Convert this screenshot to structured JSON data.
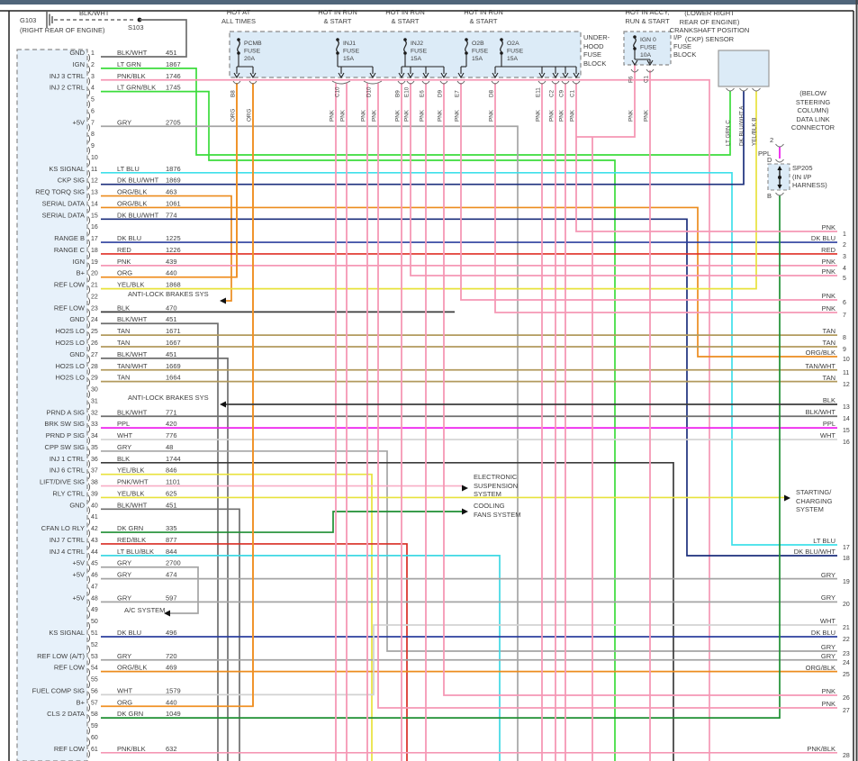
{
  "palette": {
    "PNK": "#f598b5",
    "PNK/BLK": "#f598b5",
    "PNK/WHT": "#f8aec6",
    "ORG": "#f09125",
    "ORG/BLK": "#ec8c1e",
    "RED": "#e02f26",
    "RED/BLK": "#d92d24",
    "DK BLU": "#2b3f9e",
    "DK BLU/WHT": "#1c2f7c",
    "LT BLU": "#3fe0ea",
    "LT BLU/BLK": "#3fd8e4",
    "LT GRN": "#3bdc3b",
    "LT GRN/BLK": "#3bdc3b",
    "DK GRN": "#1f8f33",
    "YEL/BLK": "#e8e23c",
    "TAN": "#b29a5d",
    "TAN/WHT": "#b29a5d",
    "BLK": "#3c3c3c",
    "BLK/WHT": "#6e6e6e",
    "GRY": "#a5a5a5",
    "WHT": "#d2d2d2",
    "PPL": "#ee22ee"
  },
  "ground": {
    "id": "G103",
    "location": "(RIGHT REAR OF ENGINE)",
    "wire": "BLK/WHT",
    "splice": "S103"
  },
  "headers": {
    "hot_all": "HOT AT\nALL TIMES",
    "hot_run": "HOT IN RUN\n& START",
    "hot_accy": "HOT IN ACCY,\nRUN & START"
  },
  "fuse_strip": {
    "block_label": "UNDER-\nHOOD\nFUSE\nBLOCK",
    "fuses": [
      {
        "name": "PCMB",
        "line2": "FUSE",
        "amps": "20A"
      },
      {
        "name": "INJ1",
        "line2": "FUSE",
        "amps": "15A"
      },
      {
        "name": "INJ2",
        "line2": "FUSE",
        "amps": "15A"
      },
      {
        "name": "O2B",
        "line2": "FUSE",
        "amps": "15A"
      },
      {
        "name": "O2A",
        "line2": "FUSE",
        "amps": "15A"
      }
    ],
    "exit_pins": [
      "B8",
      "C10",
      "D10",
      "B9",
      "E10",
      "E6",
      "D9",
      "E7",
      "D8",
      "E11",
      "C2",
      "C9",
      "C1"
    ]
  },
  "ip_fuse": {
    "block_label": "I/P\nFUSE\nBLOCK",
    "fuse": {
      "name": "IGN 0",
      "line2": "FUSE",
      "amps": "10A"
    },
    "exit_pins": [
      "F6",
      "C1"
    ],
    "wire": "PNK"
  },
  "ckp": {
    "title": "(LOWER RIGHT\nREAR OF ENGINE)\nCRANKSHAFT POSITION\n(CKP) SENSOR",
    "pins": [
      {
        "id": "C",
        "wire": "LT GRN"
      },
      {
        "id": "A",
        "wire": "DK BLU/WHT"
      },
      {
        "id": "B",
        "wire": "YEL/BLK"
      }
    ]
  },
  "dlc": {
    "title": "(BELOW\nSTEERING\nCOLUMN)\nDATA LINK\nCONNECTOR",
    "pin": "2",
    "wire": "PPL",
    "top_pin": "D",
    "bottom_pin": "B",
    "splice_label": "SP205\n(IN I/P\nHARNESS)"
  },
  "systems": {
    "abs": "ANTI-LOCK BRAKES SYS",
    "ac": "A/C SYSTEM",
    "ess": "ELECTRONIC\nSUSPENSION\nSYSTEM",
    "cooling": "COOLING\nFANS SYSTEM",
    "starting": "STARTING/\nCHARGING\nSYSTEM"
  },
  "pcm_connector": {
    "rows": [
      {
        "pin": "1",
        "label": "GND",
        "wire": "BLK/WHT",
        "circuit": "451"
      },
      {
        "pin": "2",
        "label": "IGN",
        "wire": "LT GRN",
        "circuit": "1867"
      },
      {
        "pin": "3",
        "label": "INJ 3 CTRL",
        "wire": "PNK/BLK",
        "circuit": "1746"
      },
      {
        "pin": "4",
        "label": "INJ 2 CTRL",
        "wire": "LT GRN/BLK",
        "circuit": "1745"
      },
      {
        "pin": "5",
        "label": "",
        "wire": "",
        "circuit": ""
      },
      {
        "pin": "6",
        "label": "",
        "wire": "",
        "circuit": ""
      },
      {
        "pin": "7",
        "label": "+5V",
        "wire": "GRY",
        "circuit": "2705"
      },
      {
        "pin": "8",
        "label": "",
        "wire": "",
        "circuit": ""
      },
      {
        "pin": "9",
        "label": "",
        "wire": "",
        "circuit": ""
      },
      {
        "pin": "10",
        "label": "",
        "wire": "",
        "circuit": ""
      },
      {
        "pin": "11",
        "label": "KS SIGNAL",
        "wire": "LT BLU",
        "circuit": "1876"
      },
      {
        "pin": "12",
        "label": "CKP SIG",
        "wire": "DK BLU/WHT",
        "circuit": "1869"
      },
      {
        "pin": "13",
        "label": "REQ TORQ SIG",
        "wire": "ORG/BLK",
        "circuit": "463"
      },
      {
        "pin": "14",
        "label": "SERIAL DATA",
        "wire": "ORG/BLK",
        "circuit": "1061"
      },
      {
        "pin": "15",
        "label": "SERIAL DATA",
        "wire": "DK BLU/WHT",
        "circuit": "774"
      },
      {
        "pin": "16",
        "label": "",
        "wire": "",
        "circuit": ""
      },
      {
        "pin": "17",
        "label": "RANGE B",
        "wire": "DK BLU",
        "circuit": "1225"
      },
      {
        "pin": "18",
        "label": "RANGE C",
        "wire": "RED",
        "circuit": "1226"
      },
      {
        "pin": "19",
        "label": "IGN",
        "wire": "PNK",
        "circuit": "439"
      },
      {
        "pin": "20",
        "label": "B+",
        "wire": "ORG",
        "circuit": "440"
      },
      {
        "pin": "21",
        "label": "REF LOW",
        "wire": "YEL/BLK",
        "circuit": "1868"
      },
      {
        "pin": "22",
        "label": "",
        "wire": "",
        "circuit": ""
      },
      {
        "pin": "23",
        "label": "REF LOW",
        "wire": "BLK",
        "circuit": "470"
      },
      {
        "pin": "24",
        "label": "GND",
        "wire": "BLK/WHT",
        "circuit": "451"
      },
      {
        "pin": "25",
        "label": "HO2S LO",
        "wire": "TAN",
        "circuit": "1671"
      },
      {
        "pin": "26",
        "label": "HO2S LO",
        "wire": "TAN",
        "circuit": "1667"
      },
      {
        "pin": "27",
        "label": "GND",
        "wire": "BLK/WHT",
        "circuit": "451"
      },
      {
        "pin": "28",
        "label": "HO2S LO",
        "wire": "TAN/WHT",
        "circuit": "1669"
      },
      {
        "pin": "29",
        "label": "HO2S LO",
        "wire": "TAN",
        "circuit": "1664"
      },
      {
        "pin": "30",
        "label": "",
        "wire": "",
        "circuit": ""
      },
      {
        "pin": "31",
        "label": "",
        "wire": "",
        "circuit": ""
      },
      {
        "pin": "32",
        "label": "PRND A SIG",
        "wire": "BLK/WHT",
        "circuit": "771"
      },
      {
        "pin": "33",
        "label": "BRK SW SIG",
        "wire": "PPL",
        "circuit": "420"
      },
      {
        "pin": "34",
        "label": "PRND P SIG",
        "wire": "WHT",
        "circuit": "776"
      },
      {
        "pin": "35",
        "label": "CPP SW SIG",
        "wire": "GRY",
        "circuit": "48"
      },
      {
        "pin": "36",
        "label": "INJ 1 CTRL",
        "wire": "BLK",
        "circuit": "1744"
      },
      {
        "pin": "37",
        "label": "INJ 6 CTRL",
        "wire": "YEL/BLK",
        "circuit": "846"
      },
      {
        "pin": "38",
        "label": "LIFT/DIVE SIG",
        "wire": "PNK/WHT",
        "circuit": "1101"
      },
      {
        "pin": "39",
        "label": "RLY CTRL",
        "wire": "YEL/BLK",
        "circuit": "625"
      },
      {
        "pin": "40",
        "label": "GND",
        "wire": "BLK/WHT",
        "circuit": "451"
      },
      {
        "pin": "41",
        "label": "",
        "wire": "",
        "circuit": ""
      },
      {
        "pin": "42",
        "label": "CFAN LO RLY",
        "wire": "DK GRN",
        "circuit": "335"
      },
      {
        "pin": "43",
        "label": "INJ 7 CTRL",
        "wire": "RED/BLK",
        "circuit": "877"
      },
      {
        "pin": "44",
        "label": "INJ 4 CTRL",
        "wire": "LT BLU/BLK",
        "circuit": "844"
      },
      {
        "pin": "45",
        "label": "+5V",
        "wire": "GRY",
        "circuit": "2700"
      },
      {
        "pin": "46",
        "label": "+5V",
        "wire": "GRY",
        "circuit": "474"
      },
      {
        "pin": "47",
        "label": "",
        "wire": "",
        "circuit": ""
      },
      {
        "pin": "48",
        "label": "+5V",
        "wire": "GRY",
        "circuit": "597"
      },
      {
        "pin": "49",
        "label": "",
        "wire": "",
        "circuit": ""
      },
      {
        "pin": "50",
        "label": "",
        "wire": "",
        "circuit": ""
      },
      {
        "pin": "51",
        "label": "KS SIGNAL",
        "wire": "DK BLU",
        "circuit": "496"
      },
      {
        "pin": "52",
        "label": "",
        "wire": "",
        "circuit": ""
      },
      {
        "pin": "53",
        "label": "REF LOW (A/T)",
        "wire": "GRY",
        "circuit": "720"
      },
      {
        "pin": "54",
        "label": "REF LOW",
        "wire": "ORG/BLK",
        "circuit": "469"
      },
      {
        "pin": "55",
        "label": "",
        "wire": "",
        "circuit": ""
      },
      {
        "pin": "56",
        "label": "FUEL COMP SIG",
        "wire": "WHT",
        "circuit": "1579"
      },
      {
        "pin": "57",
        "label": "B+",
        "wire": "ORG",
        "circuit": "440"
      },
      {
        "pin": "58",
        "label": "CLS 2 DATA",
        "wire": "DK GRN",
        "circuit": "1049"
      },
      {
        "pin": "59",
        "label": "",
        "wire": "",
        "circuit": ""
      },
      {
        "pin": "60",
        "label": "",
        "wire": "",
        "circuit": ""
      },
      {
        "pin": "61",
        "label": "REF LOW",
        "wire": "PNK/BLK",
        "circuit": "632"
      }
    ]
  },
  "right_pins": [
    {
      "num": "1",
      "wire": "PNK"
    },
    {
      "num": "2",
      "wire": "DK BLU"
    },
    {
      "num": "3",
      "wire": "RED"
    },
    {
      "num": "4",
      "wire": "PNK"
    },
    {
      "num": "5",
      "wire": "PNK"
    },
    {
      "num": "6",
      "wire": "PNK"
    },
    {
      "num": "7",
      "wire": "PNK"
    },
    {
      "num": "8",
      "wire": "TAN"
    },
    {
      "num": "9",
      "wire": "TAN"
    },
    {
      "num": "10",
      "wire": "ORG/BLK"
    },
    {
      "num": "11",
      "wire": "TAN/WHT"
    },
    {
      "num": "12",
      "wire": "TAN"
    },
    {
      "num": "13",
      "wire": "BLK"
    },
    {
      "num": "14",
      "wire": "BLK/WHT"
    },
    {
      "num": "15",
      "wire": "PPL"
    },
    {
      "num": "16",
      "wire": "WHT"
    },
    {
      "num": "17",
      "wire": "LT BLU"
    },
    {
      "num": "18",
      "wire": "DK BLU/WHT"
    },
    {
      "num": "19",
      "wire": "GRY"
    },
    {
      "num": "20",
      "wire": "GRY"
    },
    {
      "num": "21",
      "wire": "WHT"
    },
    {
      "num": "22",
      "wire": "DK BLU"
    },
    {
      "num": "23",
      "wire": "GRY"
    },
    {
      "num": "24",
      "wire": "GRY"
    },
    {
      "num": "25",
      "wire": "ORG/BLK"
    },
    {
      "num": "26",
      "wire": "PNK"
    },
    {
      "num": "27",
      "wire": "PNK"
    },
    {
      "num": "28",
      "wire": "PNK/BLK"
    }
  ]
}
